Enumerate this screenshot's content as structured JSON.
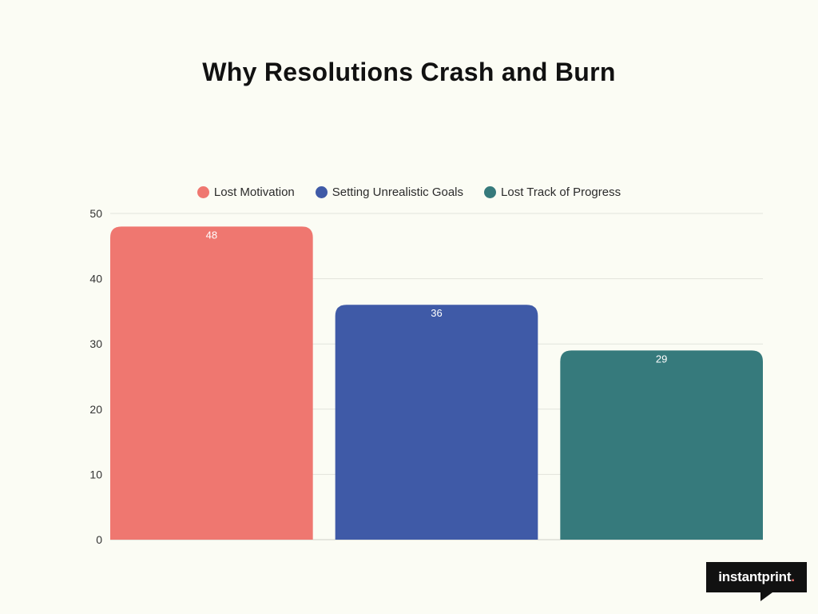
{
  "chart_data": {
    "type": "bar",
    "title": "Why Resolutions Crash and Burn",
    "xlabel": "",
    "ylabel": "",
    "ylim": [
      0,
      50
    ],
    "yticks": [
      0,
      10,
      20,
      30,
      40,
      50
    ],
    "grid": true,
    "legend_position": "top-center",
    "series": [
      {
        "name": "Lost Motivation",
        "value": 48,
        "color": "#ef7770"
      },
      {
        "name": "Setting Unrealistic Goals",
        "value": 36,
        "color": "#3f5aa7"
      },
      {
        "name": "Lost Track of Progress",
        "value": 29,
        "color": "#367a7c"
      }
    ]
  },
  "branding": {
    "logo_text": "instantprint",
    "logo_dot": "."
  }
}
